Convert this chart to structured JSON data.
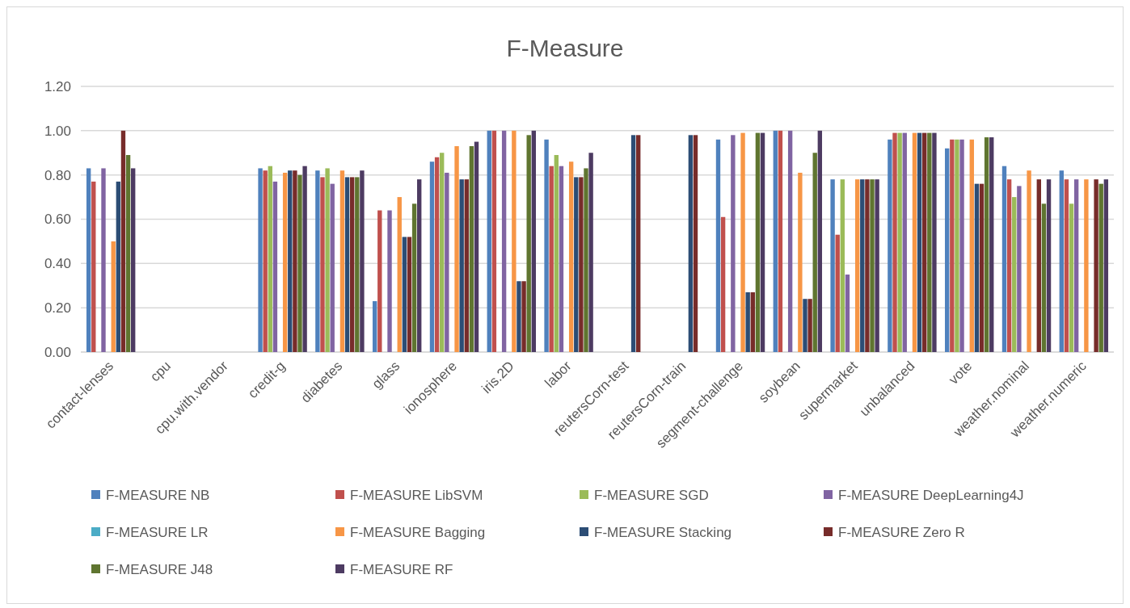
{
  "chart_data": {
    "type": "bar",
    "title": "F-Measure",
    "categories": [
      "contact-lenses",
      "cpu",
      "cpu.with.vendor",
      "credit-g",
      "diabetes",
      "glass",
      "ionosphere",
      "iris.2D",
      "labor",
      "reutersCorn-test",
      "reutersCorn-train",
      "segment-challenge",
      "soybean",
      "supermarket",
      "unbalanced",
      "vote",
      "weather.nominal",
      "weather.numeric"
    ],
    "series": [
      {
        "name": "F-MEASURE NB",
        "color": "#4f81bd",
        "values": [
          0.83,
          null,
          null,
          0.83,
          0.82,
          0.23,
          0.86,
          1.0,
          0.96,
          null,
          null,
          0.96,
          1.0,
          0.78,
          0.96,
          0.92,
          0.84,
          0.82
        ]
      },
      {
        "name": "F-MEASURE LibSVM",
        "color": "#c0504d",
        "values": [
          0.77,
          null,
          null,
          0.82,
          0.79,
          0.64,
          0.88,
          1.0,
          0.84,
          null,
          null,
          0.61,
          1.0,
          0.53,
          0.99,
          0.96,
          0.78,
          0.78
        ]
      },
      {
        "name": "F-MEASURE SGD",
        "color": "#9bbb59",
        "values": [
          null,
          null,
          null,
          0.84,
          0.83,
          null,
          0.9,
          null,
          0.89,
          null,
          null,
          null,
          null,
          0.78,
          0.99,
          0.96,
          0.7,
          0.67
        ]
      },
      {
        "name": "F-MEASURE DeepLearning4J",
        "color": "#8064a2",
        "values": [
          0.83,
          null,
          null,
          0.77,
          0.76,
          0.64,
          0.81,
          1.0,
          0.84,
          null,
          null,
          0.98,
          1.0,
          0.35,
          0.99,
          0.96,
          0.75,
          0.78
        ]
      },
      {
        "name": "F-MEASURE LR",
        "color": "#4bacc6",
        "values": [
          null,
          null,
          null,
          null,
          null,
          null,
          null,
          null,
          null,
          null,
          null,
          null,
          null,
          null,
          null,
          null,
          null,
          null
        ]
      },
      {
        "name": "F-MEASURE Bagging",
        "color": "#f79646",
        "values": [
          0.5,
          null,
          null,
          0.81,
          0.82,
          0.7,
          0.93,
          1.0,
          0.86,
          null,
          null,
          0.99,
          0.81,
          0.78,
          0.99,
          0.96,
          0.82,
          0.78
        ]
      },
      {
        "name": "F-MEASURE Stacking",
        "color": "#2c4d75",
        "values": [
          0.77,
          null,
          null,
          0.82,
          0.79,
          0.52,
          0.78,
          0.32,
          0.79,
          0.98,
          0.98,
          0.27,
          0.24,
          0.78,
          0.99,
          0.76,
          null,
          null
        ]
      },
      {
        "name": "F-MEASURE Zero R",
        "color": "#772c2a",
        "values": [
          1.0,
          null,
          null,
          0.82,
          0.79,
          0.52,
          0.78,
          0.32,
          0.79,
          0.98,
          0.98,
          0.27,
          0.24,
          0.78,
          0.99,
          0.76,
          0.78,
          0.78
        ]
      },
      {
        "name": "F-MEASURE J48",
        "color": "#5f7530",
        "values": [
          0.89,
          null,
          null,
          0.8,
          0.79,
          0.67,
          0.93,
          0.98,
          0.83,
          null,
          null,
          0.99,
          0.9,
          0.78,
          0.99,
          0.97,
          0.67,
          0.76
        ]
      },
      {
        "name": "F-MEASURE RF",
        "color": "#4d3b62",
        "values": [
          0.83,
          null,
          null,
          0.84,
          0.82,
          0.78,
          0.95,
          1.0,
          0.9,
          null,
          null,
          0.99,
          1.0,
          0.78,
          0.99,
          0.97,
          0.78,
          0.78
        ]
      }
    ],
    "ylim": [
      0,
      1.2
    ],
    "yticks": [
      {
        "value": 0,
        "label": "0.00"
      },
      {
        "value": 0.2,
        "label": "0.20"
      },
      {
        "value": 0.4,
        "label": "0.40"
      },
      {
        "value": 0.6,
        "label": "0.60"
      },
      {
        "value": 0.8,
        "label": "0.80"
      },
      {
        "value": 1,
        "label": "1.00"
      },
      {
        "value": 1.2,
        "label": "1.20"
      }
    ],
    "grid": "y",
    "legend": "bottom"
  }
}
